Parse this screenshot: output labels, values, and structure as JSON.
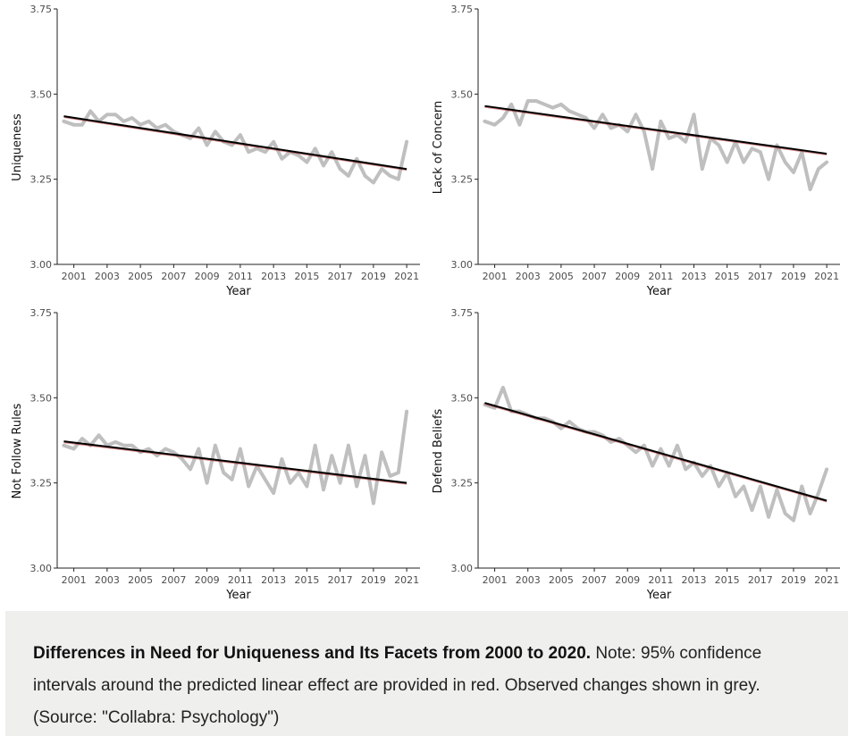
{
  "caption": {
    "title": "Differences in Need for Uniqueness and Its Facets from 2000 to 2020.",
    "note": " Note: 95% confidence intervals around the predicted linear effect are provided in red. Observed changes shown in grey. (Source: \"Collabra: Psychology\")"
  },
  "colors": {
    "observed": "#bfbfbf",
    "fit": "#000000",
    "ci": "#b22222",
    "axis": "#222222"
  },
  "chart_data": [
    {
      "type": "line",
      "ylabel": "Uniqueness",
      "xlabel": "Year",
      "xlim": [
        2000,
        2021.8
      ],
      "ylim": [
        3.0,
        3.75
      ],
      "x_ticks": [
        "2001",
        "2003",
        "2005",
        "2007",
        "2009",
        "2011",
        "2013",
        "2015",
        "2017",
        "2019",
        "2021"
      ],
      "y_ticks": [
        "3.00",
        "3.25",
        "3.50",
        "3.75"
      ],
      "fit": {
        "x": [
          2000.4,
          2021.0
        ],
        "y": [
          3.435,
          3.28
        ]
      },
      "observed": {
        "x": [
          2000.4,
          2001.0,
          2001.5,
          2002.0,
          2002.5,
          2003.0,
          2003.5,
          2004.0,
          2004.5,
          2005.0,
          2005.5,
          2006.0,
          2006.5,
          2007.0,
          2007.5,
          2008.0,
          2008.5,
          2009.0,
          2009.5,
          2010.0,
          2010.5,
          2011.0,
          2011.5,
          2012.0,
          2012.5,
          2013.0,
          2013.5,
          2014.0,
          2014.5,
          2015.0,
          2015.5,
          2016.0,
          2016.5,
          2017.0,
          2017.5,
          2018.0,
          2018.5,
          2019.0,
          2019.5,
          2020.0,
          2020.5,
          2021.0
        ],
        "y": [
          3.42,
          3.41,
          3.41,
          3.45,
          3.42,
          3.44,
          3.44,
          3.42,
          3.43,
          3.41,
          3.42,
          3.4,
          3.41,
          3.39,
          3.38,
          3.37,
          3.4,
          3.35,
          3.39,
          3.36,
          3.35,
          3.38,
          3.33,
          3.34,
          3.33,
          3.36,
          3.31,
          3.33,
          3.32,
          3.3,
          3.34,
          3.29,
          3.33,
          3.28,
          3.26,
          3.31,
          3.26,
          3.24,
          3.28,
          3.26,
          3.25,
          3.36
        ]
      }
    },
    {
      "type": "line",
      "ylabel": "Lack of Concern",
      "xlabel": "Year",
      "xlim": [
        2000,
        2021.8
      ],
      "ylim": [
        3.0,
        3.75
      ],
      "x_ticks": [
        "2001",
        "2003",
        "2005",
        "2007",
        "2009",
        "2011",
        "2013",
        "2015",
        "2017",
        "2019",
        "2021"
      ],
      "y_ticks": [
        "3.00",
        "3.25",
        "3.50",
        "3.75"
      ],
      "fit": {
        "x": [
          2000.4,
          2021.0
        ],
        "y": [
          3.465,
          3.325
        ]
      },
      "observed": {
        "x": [
          2000.4,
          2001.0,
          2001.5,
          2002.0,
          2002.5,
          2003.0,
          2003.5,
          2004.0,
          2004.5,
          2005.0,
          2005.5,
          2006.0,
          2006.5,
          2007.0,
          2007.5,
          2008.0,
          2008.5,
          2009.0,
          2009.5,
          2010.0,
          2010.5,
          2011.0,
          2011.5,
          2012.0,
          2012.5,
          2013.0,
          2013.5,
          2014.0,
          2014.5,
          2015.0,
          2015.5,
          2016.0,
          2016.5,
          2017.0,
          2017.5,
          2018.0,
          2018.5,
          2019.0,
          2019.5,
          2020.0,
          2020.5,
          2021.0
        ],
        "y": [
          3.42,
          3.41,
          3.43,
          3.47,
          3.41,
          3.48,
          3.48,
          3.47,
          3.46,
          3.47,
          3.45,
          3.44,
          3.43,
          3.4,
          3.44,
          3.4,
          3.41,
          3.39,
          3.44,
          3.39,
          3.28,
          3.42,
          3.37,
          3.38,
          3.36,
          3.44,
          3.28,
          3.37,
          3.35,
          3.3,
          3.36,
          3.3,
          3.34,
          3.33,
          3.25,
          3.35,
          3.3,
          3.27,
          3.33,
          3.22,
          3.28,
          3.3
        ]
      }
    },
    {
      "type": "line",
      "ylabel": "Not Follow Rules",
      "xlabel": "Year",
      "xlim": [
        2000,
        2021.8
      ],
      "ylim": [
        3.0,
        3.75
      ],
      "x_ticks": [
        "2001",
        "2003",
        "2005",
        "2007",
        "2009",
        "2011",
        "2013",
        "2015",
        "2017",
        "2019",
        "2021"
      ],
      "y_ticks": [
        "3.00",
        "3.25",
        "3.50",
        "3.75"
      ],
      "fit": {
        "x": [
          2000.4,
          2021.0
        ],
        "y": [
          3.372,
          3.25
        ]
      },
      "observed": {
        "x": [
          2000.4,
          2001.0,
          2001.5,
          2002.0,
          2002.5,
          2003.0,
          2003.5,
          2004.0,
          2004.5,
          2005.0,
          2005.5,
          2006.0,
          2006.5,
          2007.0,
          2007.5,
          2008.0,
          2008.5,
          2009.0,
          2009.5,
          2010.0,
          2010.5,
          2011.0,
          2011.5,
          2012.0,
          2012.5,
          2013.0,
          2013.5,
          2014.0,
          2014.5,
          2015.0,
          2015.5,
          2016.0,
          2016.5,
          2017.0,
          2017.5,
          2018.0,
          2018.5,
          2019.0,
          2019.5,
          2020.0,
          2020.5,
          2021.0
        ],
        "y": [
          3.36,
          3.35,
          3.38,
          3.36,
          3.39,
          3.36,
          3.37,
          3.36,
          3.36,
          3.34,
          3.35,
          3.33,
          3.35,
          3.34,
          3.32,
          3.29,
          3.35,
          3.25,
          3.36,
          3.28,
          3.26,
          3.35,
          3.24,
          3.3,
          3.26,
          3.22,
          3.32,
          3.25,
          3.28,
          3.24,
          3.36,
          3.23,
          3.33,
          3.25,
          3.36,
          3.24,
          3.33,
          3.19,
          3.34,
          3.27,
          3.28,
          3.46
        ]
      }
    },
    {
      "type": "line",
      "ylabel": "Defend Beliefs",
      "xlabel": "Year",
      "xlim": [
        2000,
        2021.8
      ],
      "ylim": [
        3.0,
        3.75
      ],
      "x_ticks": [
        "2001",
        "2003",
        "2005",
        "2007",
        "2009",
        "2011",
        "2013",
        "2015",
        "2017",
        "2019",
        "2021"
      ],
      "y_ticks": [
        "3.00",
        "3.25",
        "3.50",
        "3.75"
      ],
      "fit": {
        "x": [
          2000.4,
          2021.0
        ],
        "y": [
          3.485,
          3.198
        ]
      },
      "observed": {
        "x": [
          2000.4,
          2001.0,
          2001.5,
          2002.0,
          2002.5,
          2003.0,
          2003.5,
          2004.0,
          2004.5,
          2005.0,
          2005.5,
          2006.0,
          2006.5,
          2007.0,
          2007.5,
          2008.0,
          2008.5,
          2009.0,
          2009.5,
          2010.0,
          2010.5,
          2011.0,
          2011.5,
          2012.0,
          2012.5,
          2013.0,
          2013.5,
          2014.0,
          2014.5,
          2015.0,
          2015.5,
          2016.0,
          2016.5,
          2017.0,
          2017.5,
          2018.0,
          2018.5,
          2019.0,
          2019.5,
          2020.0,
          2020.5,
          2021.0
        ],
        "y": [
          3.48,
          3.47,
          3.53,
          3.46,
          3.46,
          3.45,
          3.44,
          3.44,
          3.43,
          3.41,
          3.43,
          3.41,
          3.4,
          3.4,
          3.39,
          3.37,
          3.38,
          3.36,
          3.34,
          3.36,
          3.3,
          3.35,
          3.3,
          3.36,
          3.29,
          3.31,
          3.27,
          3.3,
          3.24,
          3.28,
          3.21,
          3.24,
          3.17,
          3.24,
          3.15,
          3.23,
          3.16,
          3.14,
          3.24,
          3.16,
          3.22,
          3.29
        ]
      }
    }
  ]
}
